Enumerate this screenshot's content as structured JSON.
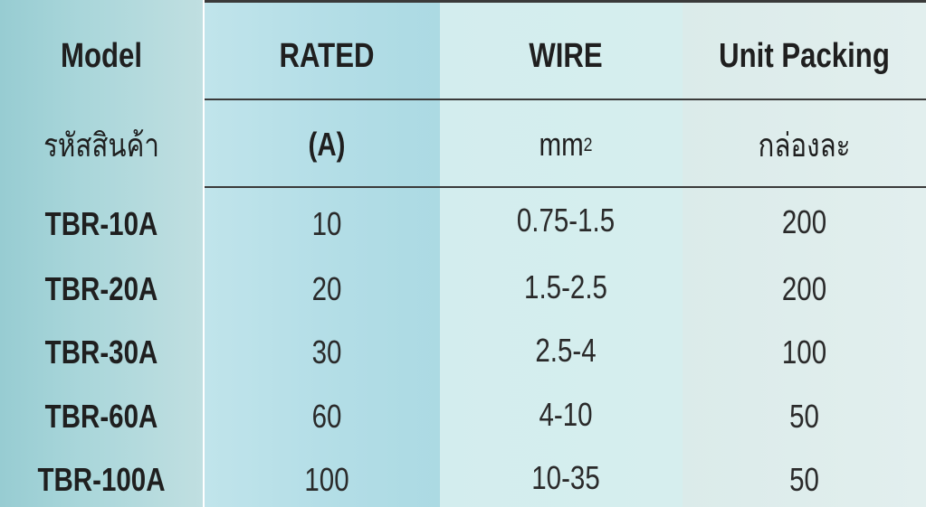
{
  "headers": {
    "model": "Model",
    "rated": "RATED",
    "wire": "WIRE",
    "unit": "Unit Packing"
  },
  "subheaders": {
    "model": "รหัสสินค้า",
    "rated": "(A)",
    "wire": "mm",
    "wire_sup": "2",
    "unit": "กล่องละ"
  },
  "rows": [
    {
      "model": "TBR-10A",
      "rated": "10",
      "wire": "0.75-1.5",
      "unit": "200"
    },
    {
      "model": "TBR-20A",
      "rated": "20",
      "wire": "1.5-2.5",
      "unit": "200"
    },
    {
      "model": "TBR-30A",
      "rated": "30",
      "wire": "2.5-4",
      "unit": "100"
    },
    {
      "model": "TBR-60A",
      "rated": "60",
      "wire": "4-10",
      "unit": "50"
    },
    {
      "model": "TBR-100A",
      "rated": "100",
      "wire": "10-35",
      "unit": "50"
    }
  ],
  "colors": {
    "model_column": "#a9d6da",
    "rated_column": "#b2dde6",
    "wire_column": "#d5eded",
    "unit_column": "#dfeeed",
    "rule_line": "#3a3a3a"
  }
}
